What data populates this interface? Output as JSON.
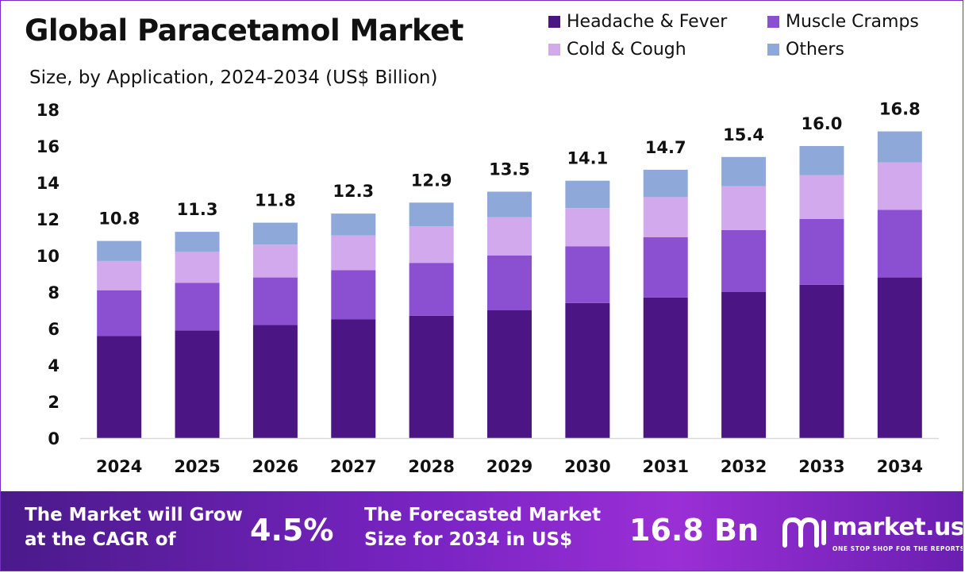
{
  "title": "Global Paracetamol Market",
  "subtitle": "Size, by Application, 2024-2034 (US$ Billion)",
  "colors": {
    "headache_fever": "#4b1683",
    "muscle_cramps": "#8b4fd1",
    "cold_cough": "#d3a9ee",
    "others": "#8fa8da",
    "accent": "#7a24c4"
  },
  "chart_data": {
    "type": "bar",
    "stacked": true,
    "categories": [
      "2024",
      "2025",
      "2026",
      "2027",
      "2028",
      "2029",
      "2030",
      "2031",
      "2032",
      "2033",
      "2034"
    ],
    "series": [
      {
        "name": "Headache & Fever",
        "color_key": "headache_fever",
        "values": [
          5.6,
          5.9,
          6.2,
          6.5,
          6.7,
          7.0,
          7.4,
          7.7,
          8.0,
          8.4,
          8.8
        ]
      },
      {
        "name": "Muscle Cramps",
        "color_key": "muscle_cramps",
        "values": [
          2.5,
          2.6,
          2.6,
          2.7,
          2.9,
          3.0,
          3.1,
          3.3,
          3.4,
          3.6,
          3.7
        ]
      },
      {
        "name": "Cold & Cough",
        "color_key": "cold_cough",
        "values": [
          1.6,
          1.7,
          1.8,
          1.9,
          2.0,
          2.1,
          2.1,
          2.2,
          2.4,
          2.4,
          2.6
        ]
      },
      {
        "name": "Others",
        "color_key": "others",
        "values": [
          1.1,
          1.1,
          1.2,
          1.2,
          1.3,
          1.4,
          1.5,
          1.5,
          1.6,
          1.6,
          1.7
        ]
      }
    ],
    "totals": [
      "10.8",
      "11.3",
      "11.8",
      "12.3",
      "12.9",
      "13.5",
      "14.1",
      "14.7",
      "15.4",
      "16.0",
      "16.8"
    ],
    "yticks": [
      "0",
      "2",
      "4",
      "6",
      "8",
      "10",
      "12",
      "14",
      "16",
      "18"
    ],
    "ylim": [
      0,
      18
    ],
    "grid": false,
    "legend_position": "top-right"
  },
  "footer": {
    "cagr_text": "The Market will Grow at the CAGR of",
    "cagr_value": "4.5%",
    "forecast_text": "The Forecasted Market Size for 2034 in US$",
    "forecast_value": "16.8 Bn",
    "brand_name": "market.us",
    "brand_tagline": "ONE STOP SHOP FOR THE REPORTS",
    "brand_icon": "market-us-logo-icon"
  }
}
